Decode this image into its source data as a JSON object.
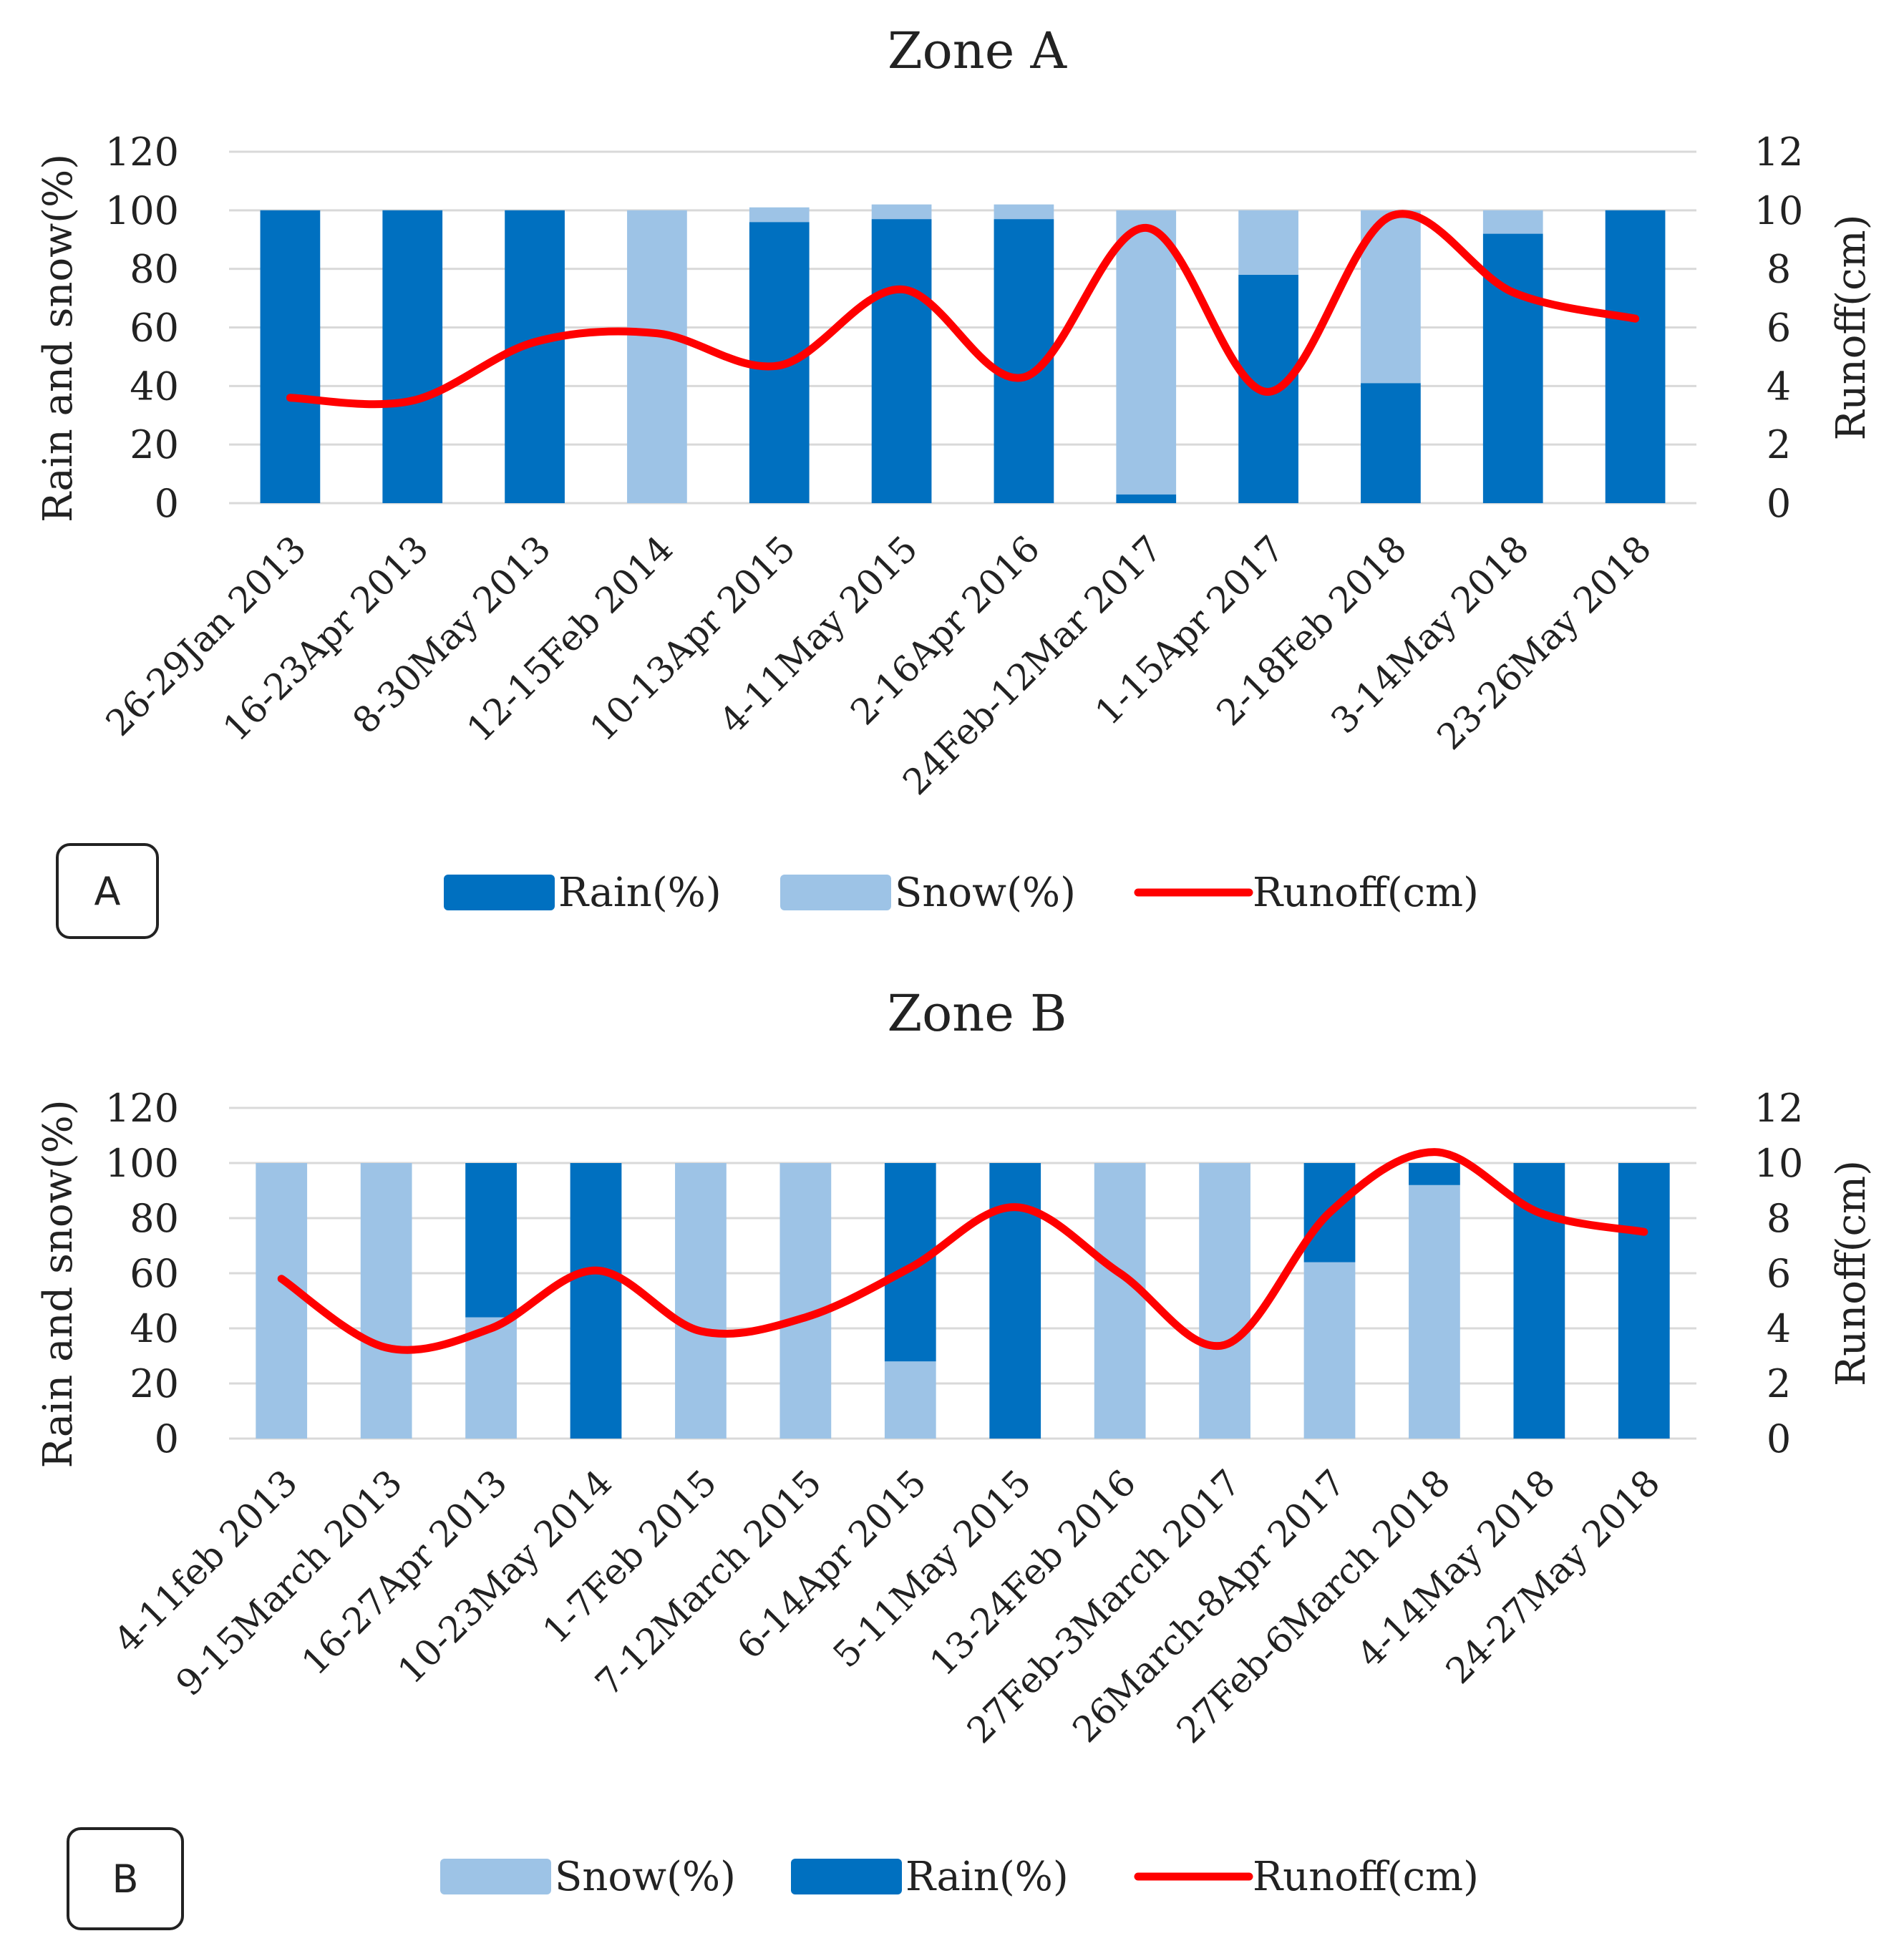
{
  "colors": {
    "rain": "#0070C0",
    "snow": "#9DC3E6",
    "runoff": "#FF0000",
    "grid": "#D9D9D9"
  },
  "chart_data": [
    {
      "type": "bar",
      "stacked": true,
      "title": "Zone A",
      "panel_label": "A",
      "ylabel": "Rain and snow(%)",
      "y2label": "Runoff(cm)",
      "ylim": [
        0,
        120
      ],
      "y2lim": [
        0,
        12
      ],
      "yticks": [
        "0",
        "20",
        "40",
        "60",
        "80",
        "100",
        "120"
      ],
      "y2ticks": [
        "0",
        "2",
        "4",
        "6",
        "8",
        "10",
        "12"
      ],
      "grid": true,
      "legend_position": "bottom",
      "categories": [
        "26-29Jan 2013",
        "16-23Apr 2013",
        "8-30May 2013",
        "12-15Feb 2014",
        "10-13Apr 2015",
        "4-11May 2015",
        "2-16Apr 2016",
        "24Feb-12Mar 2017",
        "1-15Apr 2017",
        "2-18Feb 2018",
        "3-14May 2018",
        "23-26May 2018"
      ],
      "series": [
        {
          "name": "Rain(%)",
          "kind": "bar",
          "color": "rain",
          "values": [
            100,
            100,
            100,
            0,
            96,
            97,
            97,
            3,
            78,
            41,
            92,
            100
          ]
        },
        {
          "name": "Snow(%)",
          "kind": "bar",
          "color": "snow",
          "values": [
            0,
            0,
            0,
            100,
            5,
            5,
            5,
            97,
            22,
            59,
            8,
            0
          ]
        },
        {
          "name": "Runoff(cm)",
          "kind": "line",
          "axis": "right",
          "color": "runoff",
          "values": [
            3.6,
            3.5,
            5.5,
            5.8,
            4.7,
            7.3,
            4.3,
            9.4,
            3.8,
            9.8,
            7.2,
            6.3
          ]
        }
      ],
      "stack_order": [
        0,
        1
      ],
      "legend_order": [
        0,
        1,
        2
      ]
    },
    {
      "type": "bar",
      "stacked": true,
      "title": "Zone B",
      "panel_label": "B",
      "ylabel": "Rain and snow(%)",
      "y2label": "Runoff(cm)",
      "ylim": [
        0,
        120
      ],
      "y2lim": [
        0,
        12
      ],
      "yticks": [
        "0",
        "20",
        "40",
        "60",
        "80",
        "100",
        "120"
      ],
      "y2ticks": [
        "0",
        "2",
        "4",
        "6",
        "8",
        "10",
        "12"
      ],
      "grid": true,
      "legend_position": "bottom",
      "categories": [
        "4-11feb 2013",
        "9-15March 2013",
        "16-27Apr 2013",
        "10-23May 2014",
        "1-7Feb 2015",
        "7-12March 2015",
        "6-14Apr 2015",
        "5-11May 2015",
        "13-24Feb 2016",
        "27Feb-3March 2017",
        "26March-8Apr 2017",
        "27Feb-6March 2018",
        "4-14May 2018",
        "24-27May 2018"
      ],
      "series": [
        {
          "name": "Snow(%)",
          "kind": "bar",
          "color": "snow",
          "values": [
            100,
            100,
            44,
            0,
            100,
            100,
            28,
            0,
            100,
            100,
            64,
            92,
            0,
            0
          ]
        },
        {
          "name": "Rain(%)",
          "kind": "bar",
          "color": "rain",
          "values": [
            0,
            0,
            56,
            100,
            0,
            0,
            72,
            100,
            0,
            0,
            36,
            8,
            100,
            100
          ]
        },
        {
          "name": "Runoff(cm)",
          "kind": "line",
          "axis": "right",
          "color": "runoff",
          "values": [
            5.8,
            3.3,
            4.0,
            6.1,
            3.9,
            4.4,
            6.2,
            8.4,
            6.0,
            3.4,
            8.2,
            10.4,
            8.2,
            7.5
          ]
        }
      ],
      "stack_order": [
        0,
        1
      ],
      "legend_order": [
        0,
        1,
        2
      ]
    }
  ]
}
